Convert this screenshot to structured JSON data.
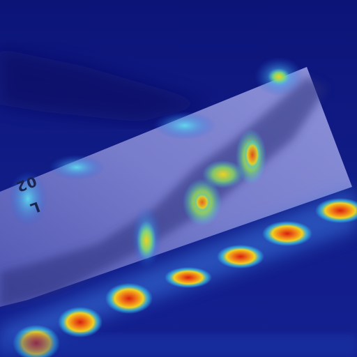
{
  "image": {
    "marker_text": "L 02"
  },
  "palette": {
    "background": "#101a80",
    "heat_hot": "#d81e10",
    "heat_warm": "#f0d020",
    "heat_cool": "#38c8e8"
  }
}
